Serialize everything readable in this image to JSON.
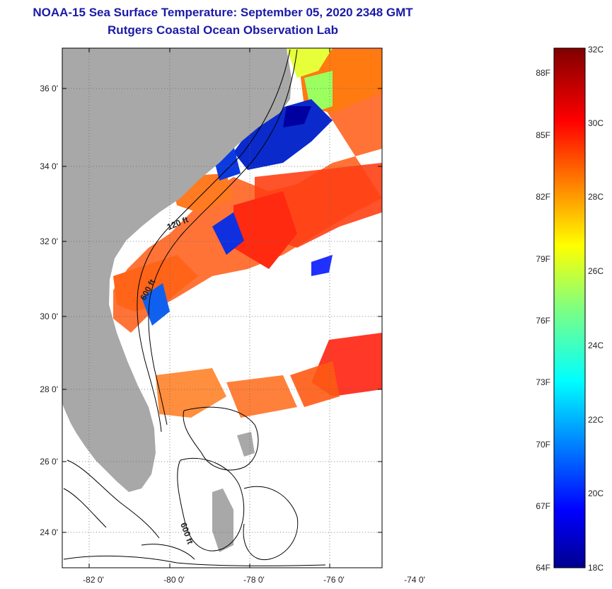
{
  "title": "NOAA-15 Sea Surface Temperature:  September 05, 2020 2348 GMT",
  "subtitle": "Rutgers Coastal Ocean Observation Lab",
  "map": {
    "lon_labels": [
      "-82 0'",
      "-80 0'",
      "-78 0'",
      "-76 0'",
      "-74 0'"
    ],
    "lat_labels": [
      "36 0'",
      "34 0'",
      "32 0'",
      "30 0'",
      "28 0'",
      "26 0'",
      "24 0'"
    ],
    "contour_labels": [
      "120 ft",
      "600 ft",
      "600 ft"
    ],
    "colors": {
      "land": "#a8a8a8",
      "cloud": "#ffffff",
      "frame": "#000000"
    }
  },
  "colorbar": {
    "fahrenheit_labels": [
      "88F",
      "85F",
      "82F",
      "79F",
      "76F",
      "73F",
      "70F",
      "67F",
      "64F"
    ],
    "celsius_labels": [
      "32C",
      "30C",
      "28C",
      "26C",
      "24C",
      "22C",
      "20C",
      "18C"
    ],
    "min_c": 18,
    "max_c": 32,
    "colormap": "jet"
  }
}
